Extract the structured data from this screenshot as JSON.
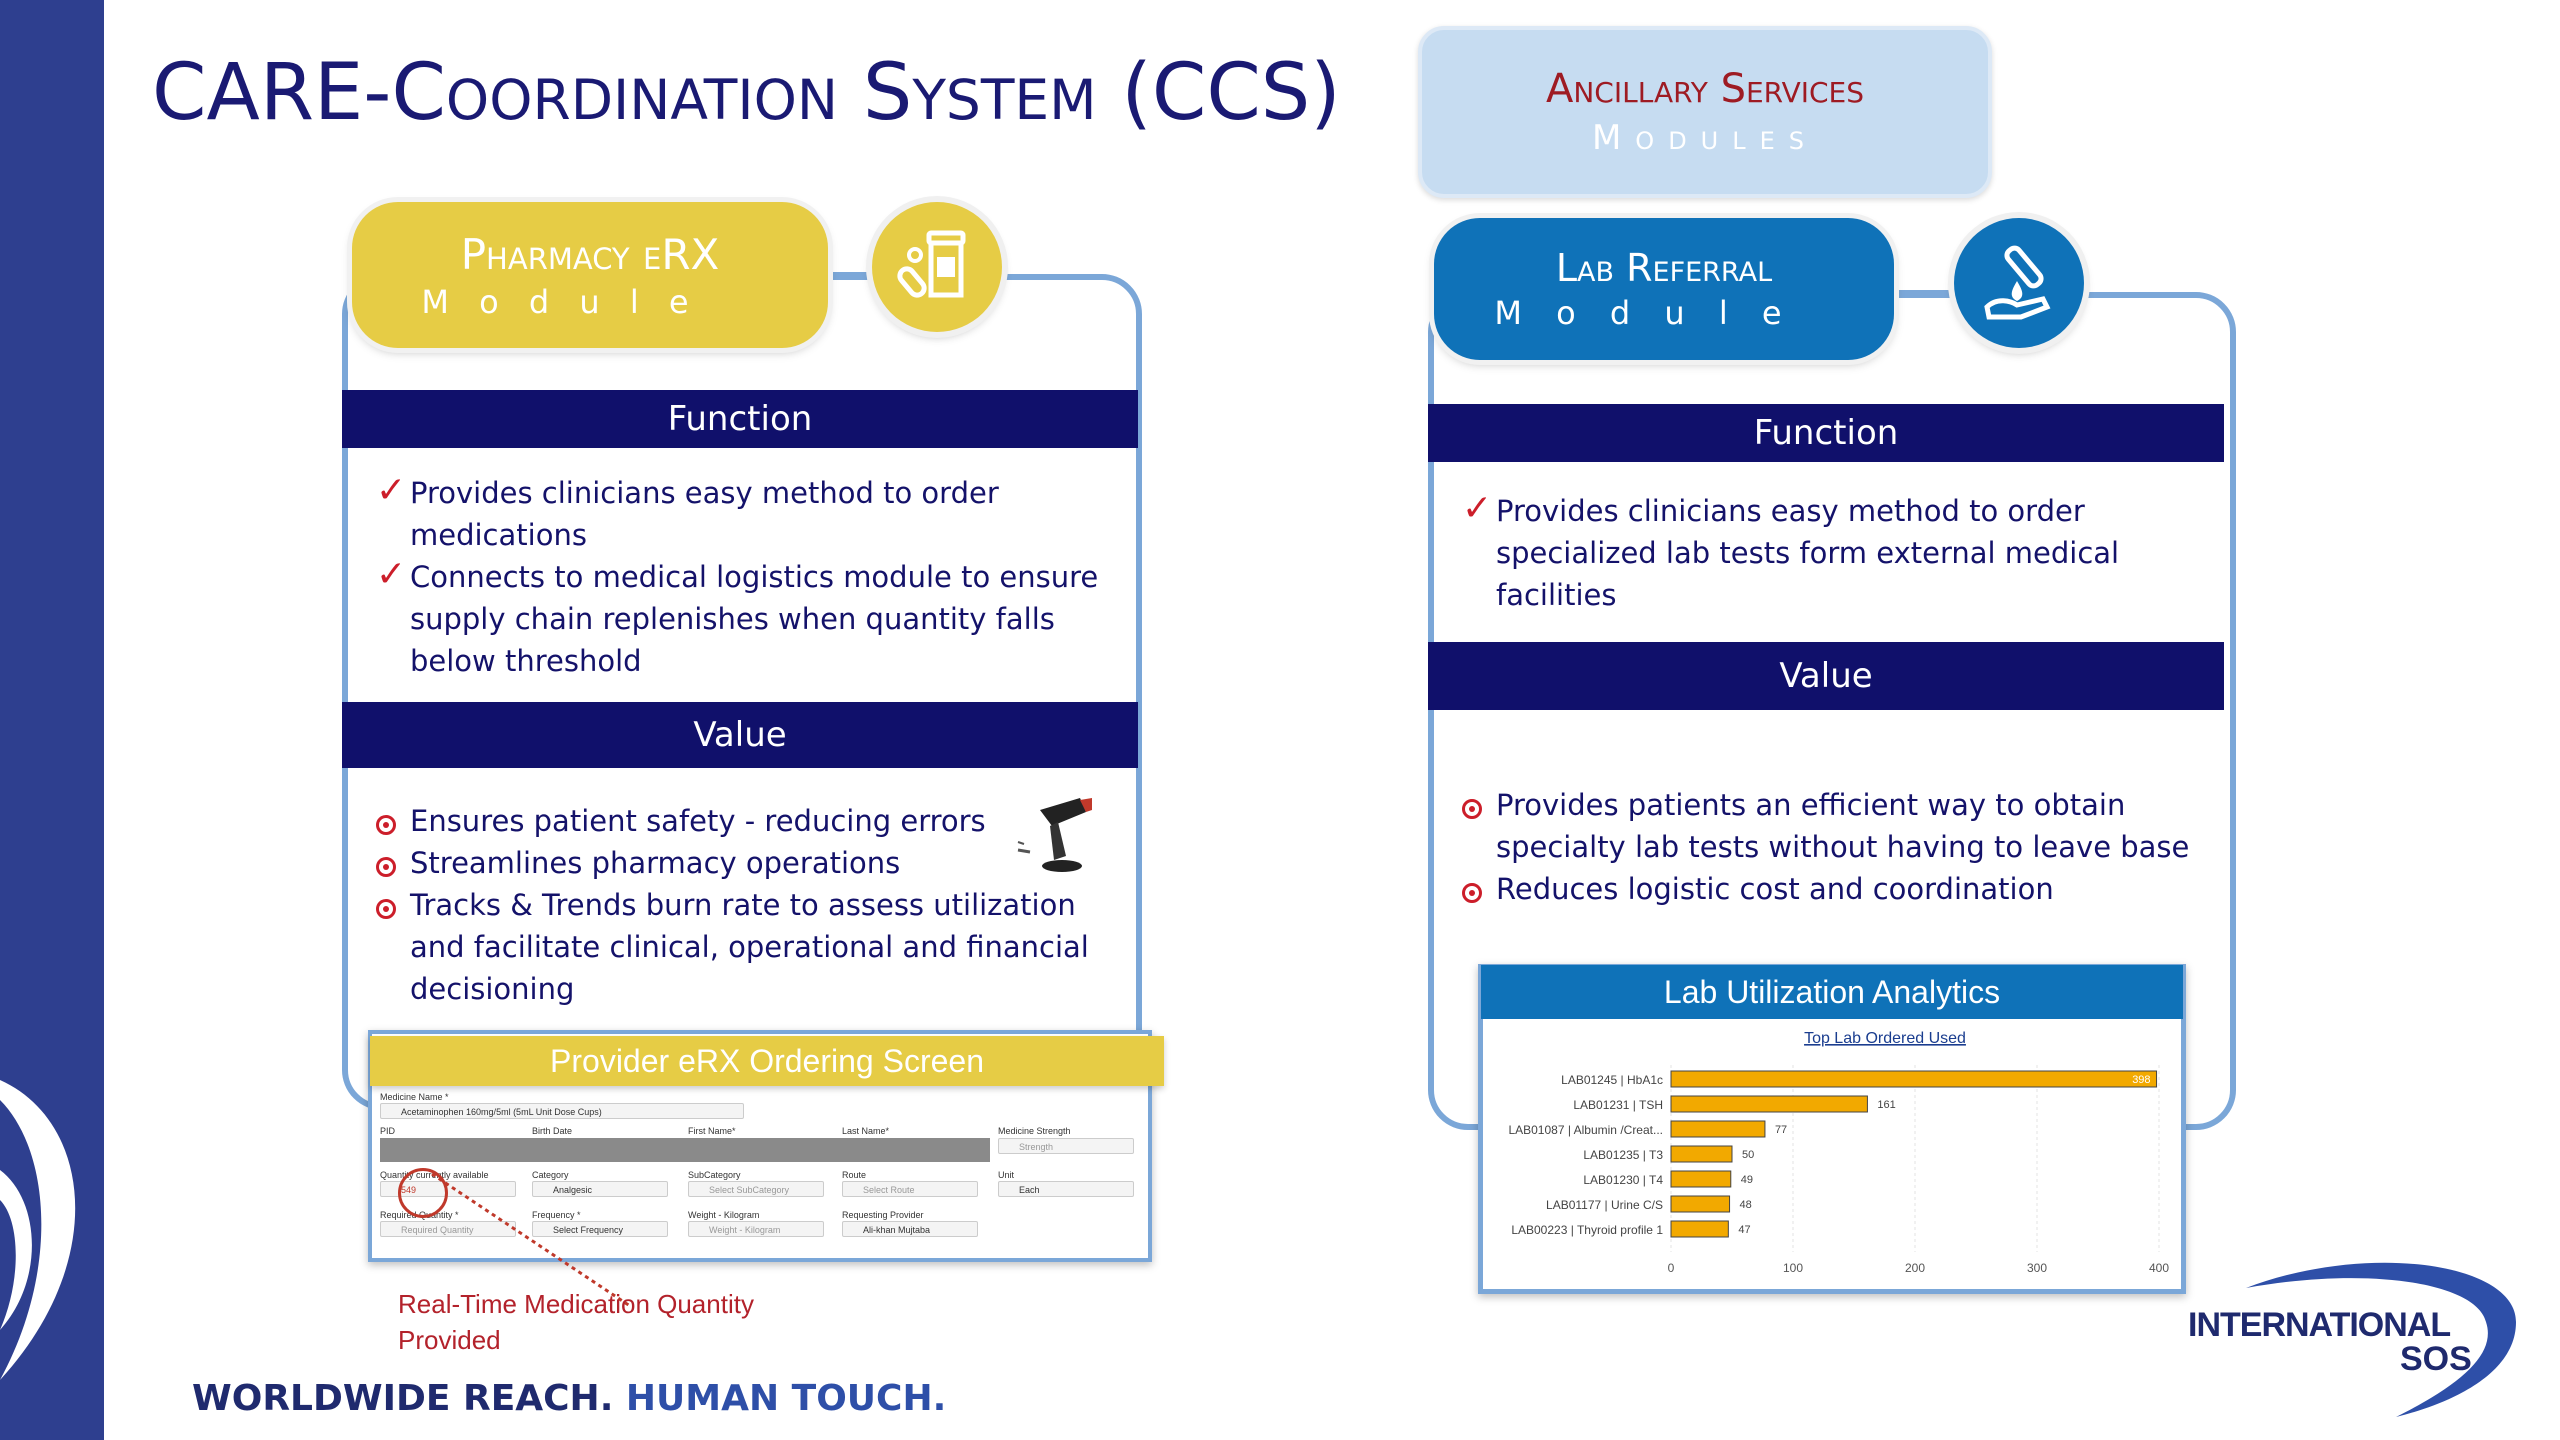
{
  "title": "CARE-Coordination System (CCS)",
  "tagline": {
    "part1": "WORLDWIDE REACH.",
    "part2": "HUMAN TOUCH."
  },
  "logo": {
    "line1": "INTERNATIONAL",
    "line2": "SOS"
  },
  "ancillary": {
    "line1": "Ancillary Services",
    "line2": "Modules"
  },
  "pharmacy": {
    "line1": "Pharmacy eRX",
    "line2": "M o d u l e",
    "function_title": "Function",
    "functions": [
      "Provides clinicians easy method to order medications",
      "Connects to medical logistics module to ensure supply chain replenishes when quantity falls below threshold"
    ],
    "value_title": "Value",
    "values": [
      "Ensures patient safety - reducing errors",
      "Streamlines pharmacy operations",
      "Tracks & Trends burn rate to assess utilization and facilitate clinical, operational and financial decisioning"
    ],
    "screen_title": "Provider eRX Ordering Screen",
    "screen": {
      "medicine_name_label": "Medicine Name *",
      "medicine_name_value": "Acetaminophen 160mg/5ml (5mL Unit Dose Cups)",
      "pid_label": "PID",
      "birth_date_label": "Birth Date",
      "first_name_label": "First Name*",
      "last_name_label": "Last Name*",
      "strength_label": "Medicine Strength",
      "strength_placeholder": "Strength",
      "qty_label": "Quantity currently available",
      "qty_value": "549",
      "category_label": "Category",
      "category_value": "Analgesic",
      "subcategory_label": "SubCategory",
      "subcategory_value": "Select SubCategory",
      "route_label": "Route",
      "route_value": "Select Route",
      "unit_label": "Unit",
      "unit_value": "Each",
      "req_qty_label": "Required Quantity *",
      "req_qty_placeholder": "Required Quantity",
      "frequency_label": "Frequency *",
      "frequency_value": "Select Frequency",
      "weight_label": "Weight - Kilogram",
      "weight_placeholder": "Weight - Kilogram",
      "provider_label": "Requesting Provider",
      "provider_value": "Ali-khan Mujtaba"
    },
    "callout": [
      "Real-Time Medication Quantity",
      "Provided"
    ]
  },
  "lab": {
    "line1": "Lab Referral",
    "line2": "M o d u l e",
    "function_title": "Function",
    "functions": [
      "Provides clinicians easy method to order specialized lab tests form external medical facilities"
    ],
    "value_title": "Value",
    "values": [
      "Provides patients an efficient way to obtain specialty lab tests without having to leave base",
      "Reduces logistic cost and coordination"
    ],
    "analytics_title": "Lab  Utilization Analytics"
  },
  "colors": {
    "navy": "#10106b",
    "yellow": "#e6cc45",
    "blue": "#0f72b8",
    "frame": "#7ba7d8",
    "accent": "#cc1e2a",
    "bar": "#f2a900"
  },
  "chart_data": {
    "type": "bar",
    "orientation": "horizontal",
    "title": "Top Lab Ordered Used",
    "categories": [
      "LAB01245 | HbA1c",
      "LAB01231 | TSH",
      "LAB01087 | Albumin /Creat...",
      "LAB01235 | T3",
      "LAB01230 | T4",
      "LAB01177 | Urine C/S",
      "LAB00223 | Thyroid profile 1"
    ],
    "values": [
      398,
      161,
      77,
      50,
      49,
      48,
      47
    ],
    "xlim": [
      0,
      400
    ],
    "xticks": [
      0,
      100,
      200,
      300,
      400
    ],
    "grid": true
  }
}
